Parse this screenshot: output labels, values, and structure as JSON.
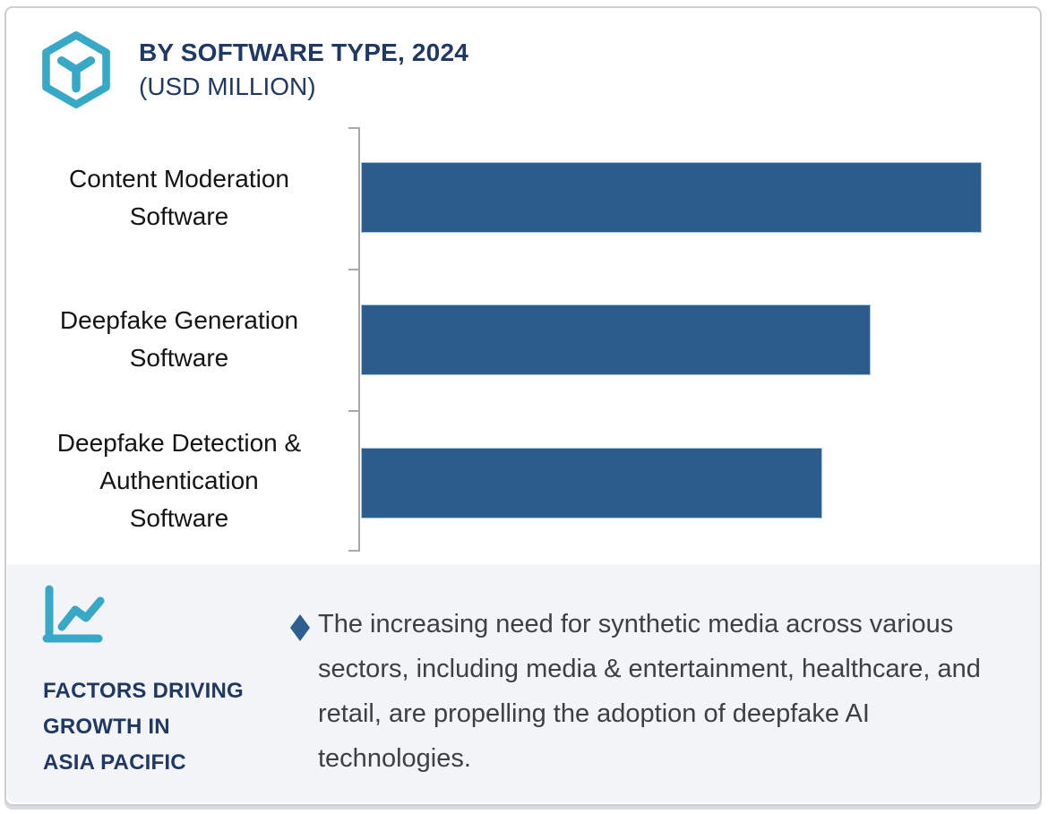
{
  "header": {
    "icon": "hexagon-cube-icon",
    "title": "BY SOFTWARE TYPE, 2024",
    "subtitle": "(USD MILLION)"
  },
  "chart_data": {
    "type": "bar",
    "orientation": "horizontal",
    "title": "BY SOFTWARE TYPE, 2024 (USD MILLION)",
    "categories": [
      "Content Moderation Software",
      "Deepfake Generation Software",
      "Deepfake Detection & Authentication Software"
    ],
    "categories_display": [
      "Content Moderation\nSoftware",
      "Deepfake Generation\nSoftware",
      "Deepfake Detection &\nAuthentication\nSoftware"
    ],
    "values_relative_pct": [
      100,
      82.1,
      74.3
    ],
    "value_labels_shown": false,
    "numeric_axis_shown": false,
    "gridlines": false,
    "legend": false,
    "bar_color": "#2b5c8b",
    "note": "No numeric axis or data labels are visible; values are relative bar lengths (% of longest bar)."
  },
  "footer": {
    "icon": "line-chart-icon",
    "heading": "FACTORS DRIVING\nGROWTH IN\nASIA PACIFIC",
    "bullet_icon": "diamond-bullet-icon",
    "bullet_text": "The increasing need for synthetic media across various sectors, including media & entertainment, healthcare, and retail, are propelling the adoption of deepfake AI technologies."
  },
  "colors": {
    "bar": "#2b5c8b",
    "teal_accent": "#38a8c7",
    "navy_text": "#1f3864",
    "panel_background": "#f3f4f8",
    "body_text": "#3d3f42",
    "axis_gray": "#a9a9a9",
    "card_border": "#cdced3"
  }
}
